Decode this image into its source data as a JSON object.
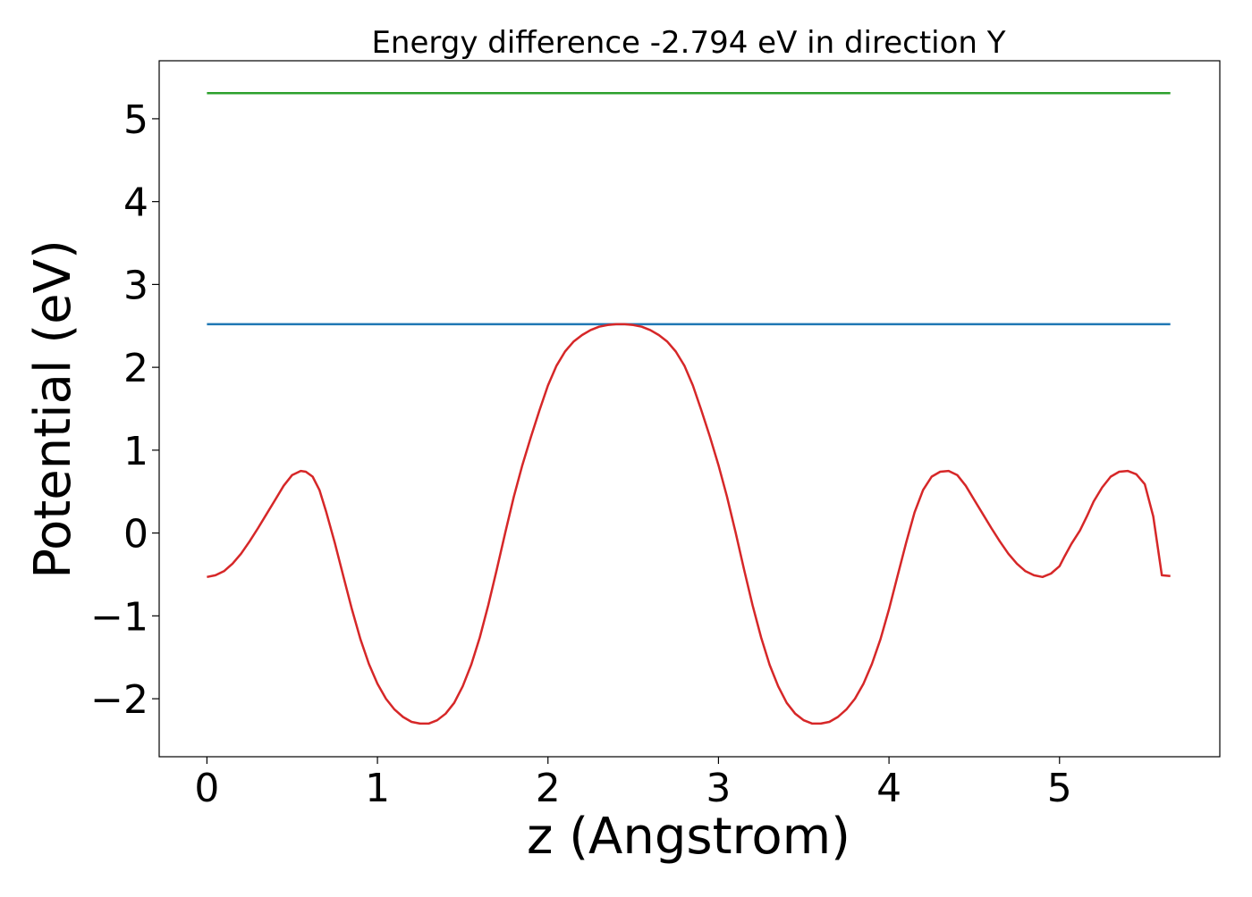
{
  "chart_data": {
    "type": "line",
    "title": "Energy difference -2.794 eV in direction Y",
    "xlabel": "z (Angstrom)",
    "ylabel": "Potential (eV)",
    "xlim": [
      -0.28,
      5.94
    ],
    "ylim": [
      -2.7,
      5.7
    ],
    "xticks": [
      0,
      1,
      2,
      3,
      4,
      5
    ],
    "xtick_labels": [
      "0",
      "1",
      "2",
      "3",
      "4",
      "5"
    ],
    "yticks": [
      -2,
      -1,
      0,
      1,
      2,
      3,
      4,
      5
    ],
    "ytick_labels": [
      "−2",
      "−1",
      "0",
      "1",
      "2",
      "3",
      "4",
      "5"
    ],
    "grid": false,
    "legend": null,
    "series": [
      {
        "color": "#2ca02c",
        "x": [
          0,
          5.65
        ],
        "y": [
          5.31,
          5.31
        ]
      },
      {
        "color": "#1f77b4",
        "x": [
          0,
          5.65
        ],
        "y": [
          2.52,
          2.52
        ]
      },
      {
        "color": "#d62728",
        "x": [
          0.0,
          0.05,
          0.1,
          0.15,
          0.2,
          0.25,
          0.3,
          0.35,
          0.4,
          0.45,
          0.5,
          0.55,
          0.58,
          0.62,
          0.66,
          0.7,
          0.75,
          0.8,
          0.85,
          0.9,
          0.95,
          1.0,
          1.05,
          1.1,
          1.15,
          1.2,
          1.25,
          1.3,
          1.35,
          1.4,
          1.45,
          1.5,
          1.55,
          1.6,
          1.65,
          1.7,
          1.75,
          1.8,
          1.85,
          1.9,
          1.95,
          2.0,
          2.05,
          2.1,
          2.15,
          2.2,
          2.25,
          2.3,
          2.35,
          2.4,
          2.45,
          2.5,
          2.55,
          2.6,
          2.65,
          2.7,
          2.75,
          2.8,
          2.85,
          2.9,
          2.95,
          3.0,
          3.05,
          3.1,
          3.15,
          3.2,
          3.25,
          3.3,
          3.35,
          3.4,
          3.45,
          3.5,
          3.55,
          3.6,
          3.65,
          3.7,
          3.75,
          3.8,
          3.85,
          3.9,
          3.95,
          4.0,
          4.05,
          4.1,
          4.15,
          4.2,
          4.25,
          4.3,
          4.35,
          4.4,
          4.45,
          4.5,
          4.55,
          4.6,
          4.65,
          4.7,
          4.75,
          4.8,
          4.85,
          4.9,
          4.95,
          5.0,
          5.03,
          5.07,
          5.12,
          5.16,
          5.2,
          5.25,
          5.3,
          5.35,
          5.4,
          5.45,
          5.5,
          5.55,
          5.6,
          5.65
        ],
        "y": [
          -0.53,
          -0.51,
          -0.46,
          -0.37,
          -0.25,
          -0.1,
          0.06,
          0.23,
          0.4,
          0.57,
          0.7,
          0.75,
          0.74,
          0.68,
          0.52,
          0.25,
          -0.12,
          -0.52,
          -0.92,
          -1.28,
          -1.58,
          -1.82,
          -2.0,
          -2.13,
          -2.22,
          -2.28,
          -2.3,
          -2.3,
          -2.26,
          -2.18,
          -2.05,
          -1.85,
          -1.59,
          -1.26,
          -0.87,
          -0.44,
          0.01,
          0.44,
          0.82,
          1.16,
          1.48,
          1.78,
          2.02,
          2.19,
          2.31,
          2.39,
          2.45,
          2.49,
          2.51,
          2.52,
          2.52,
          2.51,
          2.49,
          2.45,
          2.39,
          2.31,
          2.19,
          2.02,
          1.78,
          1.48,
          1.16,
          0.82,
          0.44,
          0.01,
          -0.44,
          -0.87,
          -1.26,
          -1.59,
          -1.85,
          -2.05,
          -2.18,
          -2.26,
          -2.3,
          -2.3,
          -2.28,
          -2.22,
          -2.13,
          -2.0,
          -1.82,
          -1.58,
          -1.28,
          -0.92,
          -0.52,
          -0.12,
          0.25,
          0.52,
          0.68,
          0.74,
          0.75,
          0.7,
          0.57,
          0.4,
          0.23,
          0.06,
          -0.1,
          -0.25,
          -0.37,
          -0.46,
          -0.51,
          -0.53,
          -0.49,
          -0.4,
          -0.28,
          -0.13,
          0.03,
          0.2,
          0.38,
          0.55,
          0.68,
          0.74,
          0.75,
          0.71,
          0.59,
          0.2,
          -0.51,
          -0.52
        ]
      }
    ]
  }
}
